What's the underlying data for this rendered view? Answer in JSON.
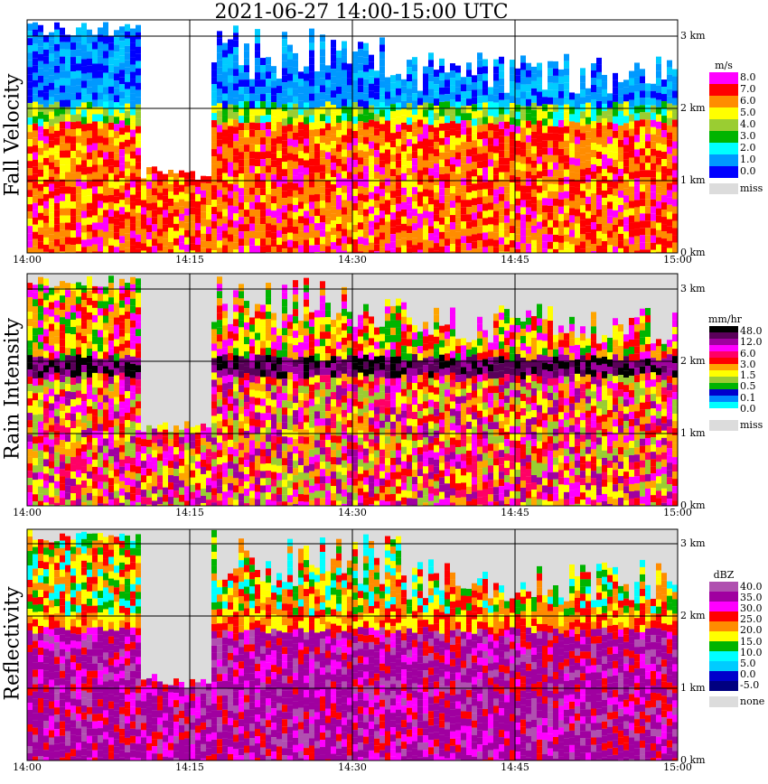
{
  "title": "2021-06-27  14:00-15:00 UTC",
  "time_axis": [
    "14:00",
    "14:15",
    "14:30",
    "14:45",
    "15:00"
  ],
  "height_axis": [
    "3 km",
    "2 km",
    "1 km",
    "0 km"
  ],
  "chart_data": [
    {
      "type": "heatmap",
      "title": "Fall Velocity",
      "x": [
        "14:00",
        "14:15",
        "14:30",
        "14:45",
        "15:00"
      ],
      "y": [
        "0 km",
        "1 km",
        "2 km",
        "3 km"
      ],
      "ylim": [
        0,
        3.2
      ],
      "xlim": [
        "14:00",
        "15:00"
      ],
      "grid": true,
      "legend": {
        "unit": "m/s",
        "levels": [
          "8.0",
          "7.0",
          "6.0",
          "5.0",
          "4.0",
          "3.0",
          "2.0",
          "1.0",
          "0.0"
        ],
        "colors": [
          "#ff00ff",
          "#ff0000",
          "#ff8c00",
          "#ffff00",
          "#9acd32",
          "#00b400",
          "#00ffff",
          "#0099ff",
          "#0000ff"
        ],
        "missing_label": "miss",
        "missing_color": "#dcdcdc"
      }
    },
    {
      "type": "heatmap",
      "title": "Rain Intensity",
      "x": [
        "14:00",
        "14:15",
        "14:30",
        "14:45",
        "15:00"
      ],
      "y": [
        "0 km",
        "1 km",
        "2 km",
        "3 km"
      ],
      "ylim": [
        0,
        3.2
      ],
      "xlim": [
        "14:00",
        "15:00"
      ],
      "grid": true,
      "legend": {
        "unit": "mm/hr",
        "levels": [
          "48.0",
          "12.0",
          "6.0",
          "3.0",
          "1.5",
          "0.5",
          "0.1",
          "0.0"
        ],
        "colors": [
          "#000000",
          "#5a005a",
          "#a000a0",
          "#ff00ff",
          "#ff0066",
          "#ff0000",
          "#ffa500",
          "#ffff00",
          "#9acd32",
          "#00b400",
          "#0000cc",
          "#0088ff",
          "#00ffff",
          "#ffffff"
        ],
        "missing_label": "miss",
        "missing_color": "#dcdcdc"
      }
    },
    {
      "type": "heatmap",
      "title": "Reflectivity",
      "x": [
        "14:00",
        "14:15",
        "14:30",
        "14:45",
        "15:00"
      ],
      "y": [
        "0 km",
        "1 km",
        "2 km",
        "3 km"
      ],
      "ylim": [
        0,
        3.2
      ],
      "xlim": [
        "14:00",
        "15:00"
      ],
      "grid": true,
      "legend": {
        "unit": "dBZ",
        "levels": [
          "40.0",
          "35.0",
          "30.0",
          "25.0",
          "20.0",
          "15.0",
          "10.0",
          "5.0",
          "0.0",
          "-5.0"
        ],
        "colors": [
          "#b050b0",
          "#a000a0",
          "#ff00ff",
          "#ff0000",
          "#ff8c00",
          "#ffff00",
          "#00b400",
          "#00ffff",
          "#00ccff",
          "#0000cc",
          "#000080"
        ],
        "missing_label": "none",
        "missing_color": "#dcdcdc"
      }
    }
  ]
}
